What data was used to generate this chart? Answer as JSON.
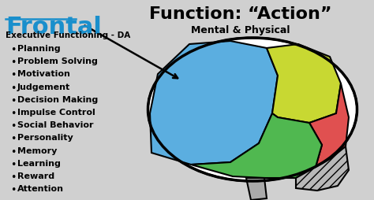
{
  "title_left": "Frontal",
  "subtitle_left": "Executive Functioning - DA",
  "bullet_items": [
    "Planning",
    "Problem Solving",
    "Motivation",
    "Judgement",
    "Decision Making",
    "Impulse Control",
    "Social Behavior",
    "Personality",
    "Memory",
    "Learning",
    "Reward",
    "Attention"
  ],
  "title_right": "Function: “Action”",
  "subtitle_right": "Mental & Physical",
  "bg_color": "#d0d0d0",
  "frontal_color": "#5baee0",
  "parietal_color": "#c8d832",
  "occipital_color": "#e05050",
  "temporal_color": "#50b850",
  "cerebellum_color": "#b8b8b8",
  "title_left_color": "#1a8fcc",
  "text_color": "#000000",
  "arrow_color": "#000000"
}
